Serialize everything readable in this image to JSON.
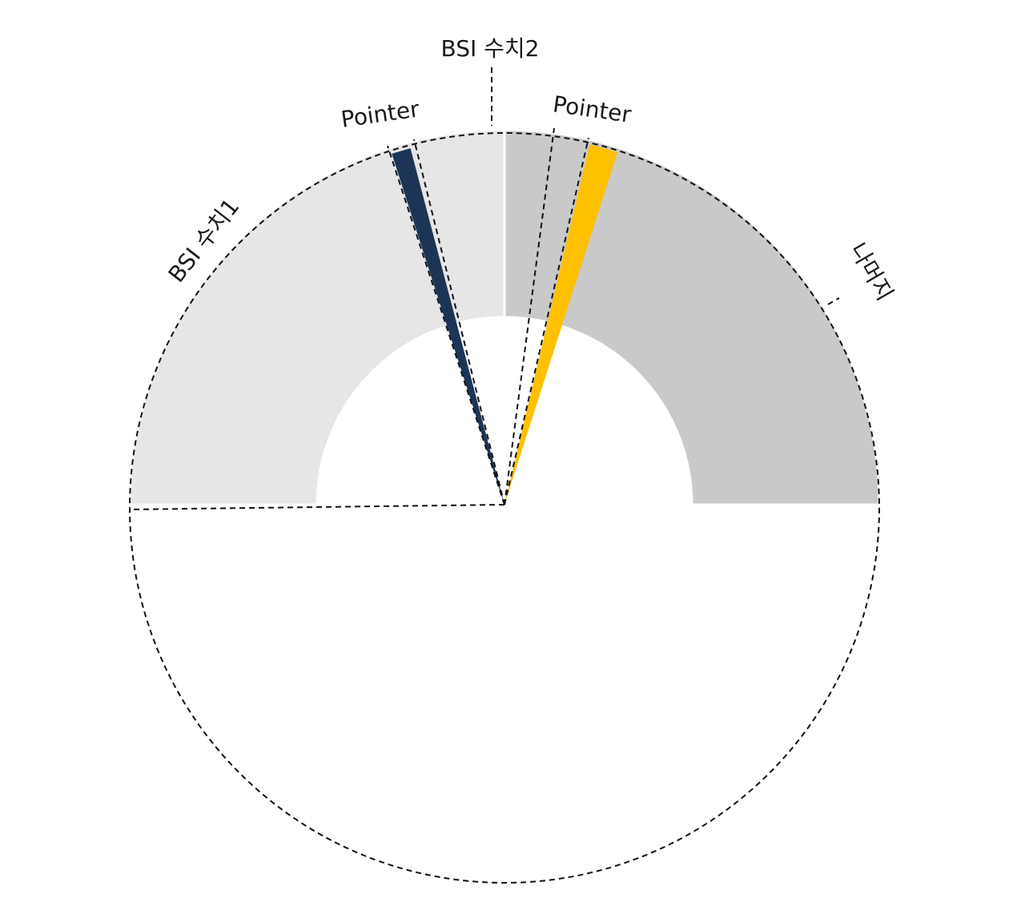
{
  "chart_data": {
    "type": "pie",
    "title": "",
    "start_angle_deg": -90,
    "outer_series": {
      "categories": [
        "BSI 수치1",
        "BSI 수치2",
        "나머지"
      ],
      "values": [
        91,
        9,
        100
      ],
      "visible_values": [
        82,
        5,
        93
      ],
      "colors": [
        "#e6e6e6",
        "#c9c9c9",
        "#ffffff"
      ]
    },
    "pointer_series": {
      "categories": [
        "",
        "Pointer",
        "",
        "Pointer",
        "나머지"
      ],
      "values": [
        81,
        2,
        17,
        4,
        96
      ],
      "colors": [
        "none",
        "#1c3557",
        "none",
        "#ffc000",
        "none"
      ]
    },
    "labels": {
      "bsi1": "BSI 수치1",
      "bsi2": "BSI 수치2",
      "pointer_left": "Pointer",
      "pointer_right": "Pointer",
      "rest": "나머지"
    },
    "colors": {
      "pointer_dark": "#1c3557",
      "pointer_gold": "#ffc000",
      "gauge_light": "#e6e6e6",
      "gauge_mid": "#c9c9c9"
    },
    "donut_hole_ratio": 0.5,
    "gauge_span_deg": 180
  }
}
